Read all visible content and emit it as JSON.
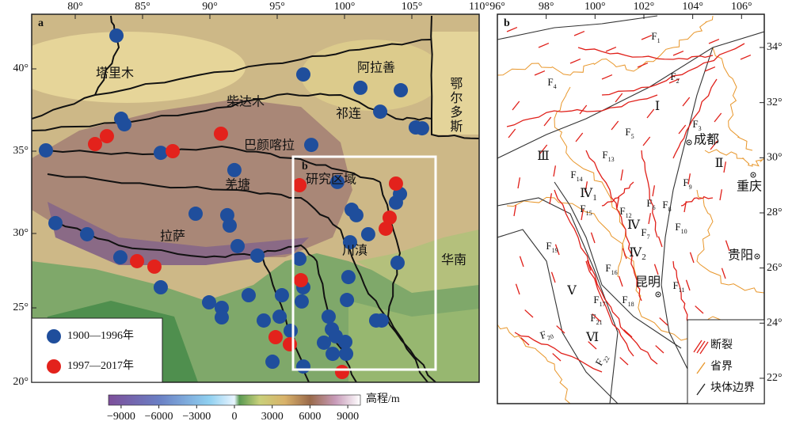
{
  "panel_a": {
    "label": "a",
    "xticks": [
      {
        "value": 80,
        "label": "80°"
      },
      {
        "value": 85,
        "label": "85°"
      },
      {
        "value": 90,
        "label": "90°"
      },
      {
        "value": 95,
        "label": "95°"
      },
      {
        "value": 100,
        "label": "100°"
      },
      {
        "value": 105,
        "label": "105°"
      },
      {
        "value": 110,
        "label": "110°"
      }
    ],
    "yticks": [
      {
        "value": 40,
        "label": "40°"
      },
      {
        "value": 35,
        "label": "35°"
      },
      {
        "value": 30,
        "label": "30°"
      },
      {
        "value": 25,
        "label": "25°"
      },
      {
        "value": 20,
        "label": "20°"
      }
    ],
    "places": [
      "塔里木",
      "阿拉善",
      "鄂尔多斯",
      "柴达木",
      "祁连",
      "巴颜喀拉",
      "羌塘",
      "拉萨",
      "研究区域",
      "川滇",
      "华南"
    ],
    "inset_label": "b",
    "series": [
      {
        "name": "1900—1996年",
        "color": "#1f4e9c",
        "points": [
          [
            83.06,
            42.02
          ],
          [
            96.94,
            39.66
          ],
          [
            101.18,
            38.85
          ],
          [
            104.18,
            38.7
          ],
          [
            83.41,
            36.97
          ],
          [
            83.65,
            36.63
          ],
          [
            102.65,
            37.4
          ],
          [
            105.29,
            36.44
          ],
          [
            105.76,
            36.39
          ],
          [
            77.82,
            35.05
          ],
          [
            86.35,
            34.9
          ],
          [
            97.53,
            35.38
          ],
          [
            91.82,
            33.85
          ],
          [
            99.47,
            33.13
          ],
          [
            104.12,
            32.4
          ],
          [
            103.82,
            31.88
          ],
          [
            100.53,
            31.44
          ],
          [
            100.88,
            31.11
          ],
          [
            88.94,
            31.2
          ],
          [
            91.29,
            31.11
          ],
          [
            91.47,
            30.48
          ],
          [
            78.53,
            30.63
          ],
          [
            80.88,
            29.95
          ],
          [
            101.76,
            29.95
          ],
          [
            100.41,
            29.41
          ],
          [
            92.06,
            29.15
          ],
          [
            83.35,
            28.4
          ],
          [
            93.53,
            28.51
          ],
          [
            96.65,
            28.3
          ],
          [
            103.94,
            28.03
          ],
          [
            100.29,
            27.07
          ],
          [
            86.35,
            26.38
          ],
          [
            96.94,
            26.38
          ],
          [
            96.82,
            25.43
          ],
          [
            92.88,
            25.85
          ],
          [
            95.35,
            25.85
          ],
          [
            100.18,
            25.53
          ],
          [
            89.94,
            25.37
          ],
          [
            90.88,
            25.0
          ],
          [
            90.88,
            24.36
          ],
          [
            95.18,
            24.41
          ],
          [
            94.0,
            24.15
          ],
          [
            98.82,
            24.41
          ],
          [
            96.0,
            23.46
          ],
          [
            99.06,
            23.56
          ],
          [
            99.35,
            23.09
          ],
          [
            98.47,
            22.66
          ],
          [
            100.06,
            22.71
          ],
          [
            99.12,
            21.91
          ],
          [
            100.12,
            21.91
          ],
          [
            94.65,
            21.38
          ],
          [
            96.94,
            21.06
          ],
          [
            102.35,
            24.15
          ],
          [
            102.76,
            24.15
          ]
        ]
      },
      {
        "name": "1997—2017年",
        "color": "#e3221c",
        "points": [
          [
            81.47,
            35.43
          ],
          [
            82.35,
            35.91
          ],
          [
            87.24,
            35.0
          ],
          [
            90.82,
            36.06
          ],
          [
            96.65,
            32.93
          ],
          [
            103.82,
            33.03
          ],
          [
            103.35,
            30.96
          ],
          [
            103.06,
            30.29
          ],
          [
            84.59,
            28.14
          ],
          [
            85.88,
            27.77
          ],
          [
            96.76,
            26.86
          ],
          [
            94.88,
            23.03
          ],
          [
            95.94,
            22.55
          ],
          [
            99.82,
            20.69
          ]
        ]
      }
    ]
  },
  "colorbar": {
    "title": "高程/m",
    "lim": [
      -10000,
      10000
    ],
    "ticks": [
      {
        "value": -9000,
        "label": "−9000"
      },
      {
        "value": -6000,
        "label": "−6000"
      },
      {
        "value": -3000,
        "label": "−3000"
      },
      0,
      3000,
      6000,
      9000
    ]
  },
  "panel_b": {
    "label": "b",
    "xticks": [
      {
        "value": 96,
        "label": "96°"
      },
      {
        "value": 98,
        "label": "98°"
      },
      {
        "value": 100,
        "label": "100°"
      },
      {
        "value": 102,
        "label": "102°"
      },
      {
        "value": 104,
        "label": "104°"
      },
      {
        "value": 106,
        "label": "106°"
      }
    ],
    "yticks": [
      {
        "value": 34,
        "label": "34°"
      },
      {
        "value": 32,
        "label": "32°"
      },
      {
        "value": 30,
        "label": "30°"
      },
      {
        "value": 28,
        "label": "28°"
      },
      {
        "value": 26,
        "label": "26°"
      },
      {
        "value": 24,
        "label": "24°"
      },
      {
        "value": 22,
        "label": "22°"
      }
    ],
    "faults": [
      {
        "main": "F",
        "sub": "1"
      },
      {
        "main": "F",
        "sub": "2"
      },
      {
        "main": "F",
        "sub": "3"
      },
      {
        "main": "F",
        "sub": "4"
      },
      {
        "main": "F",
        "sub": "5"
      },
      {
        "main": "F",
        "sub": "6"
      },
      {
        "main": "F",
        "sub": "7"
      },
      {
        "main": "F",
        "sub": "8"
      },
      {
        "main": "F",
        "sub": "9"
      },
      {
        "main": "F",
        "sub": "10"
      },
      {
        "main": "F",
        "sub": "11"
      },
      {
        "main": "F",
        "sub": "12"
      },
      {
        "main": "F",
        "sub": "13"
      },
      {
        "main": "F",
        "sub": "14"
      },
      {
        "main": "F",
        "sub": "15"
      },
      {
        "main": "F",
        "sub": "16"
      },
      {
        "main": "F",
        "sub": "17"
      },
      {
        "main": "F",
        "sub": "18"
      },
      {
        "main": "F",
        "sub": "19"
      },
      {
        "main": "F",
        "sub": "20"
      },
      {
        "main": "F",
        "sub": "21"
      },
      {
        "main": "F",
        "sub": "22"
      }
    ],
    "blocks": [
      {
        "main": "Ⅰ"
      },
      {
        "main": "Ⅱ"
      },
      {
        "main": "Ⅲ"
      },
      {
        "main": "Ⅳ",
        "sub": "1"
      },
      {
        "main": "Ⅳ"
      },
      {
        "main": "Ⅳ",
        "sub": "2"
      },
      {
        "main": "Ⅴ"
      },
      {
        "main": "Ⅵ"
      }
    ],
    "cities": [
      "成都",
      "重庆",
      "贵阳",
      "昆明"
    ],
    "legend": [
      "断裂",
      "省界",
      "块体边界"
    ]
  }
}
